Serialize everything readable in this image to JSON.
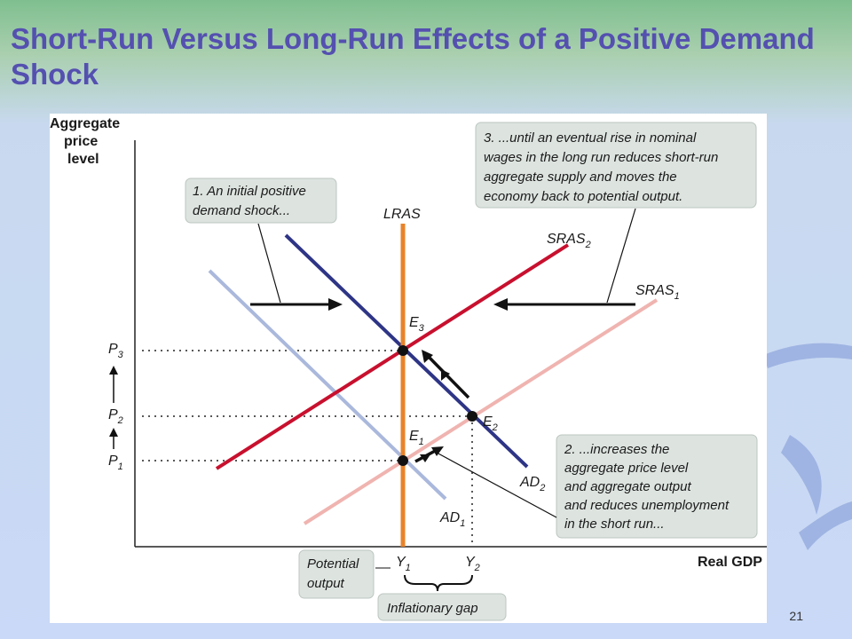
{
  "slide": {
    "title": "Short-Run Versus Long-Run Effects of a Positive Demand Shock",
    "number": "21"
  },
  "diagram": {
    "y_axis_label": [
      "Aggregate",
      "price",
      "level"
    ],
    "x_axis_label": "Real GDP",
    "curves": {
      "lras": "LRAS",
      "sras1": {
        "base": "SRAS",
        "sub": "1"
      },
      "sras2": {
        "base": "SRAS",
        "sub": "2"
      },
      "ad1": {
        "base": "AD",
        "sub": "1"
      },
      "ad2": {
        "base": "AD",
        "sub": "2"
      }
    },
    "points": {
      "e1": {
        "base": "E",
        "sub": "1"
      },
      "e2": {
        "base": "E",
        "sub": "2"
      },
      "e3": {
        "base": "E",
        "sub": "3"
      }
    },
    "price_levels": {
      "p1": {
        "base": "P",
        "sub": "1"
      },
      "p2": {
        "base": "P",
        "sub": "2"
      },
      "p3": {
        "base": "P",
        "sub": "3"
      }
    },
    "outputs": {
      "y1": {
        "base": "Y",
        "sub": "1"
      },
      "y2": {
        "base": "Y",
        "sub": "2"
      }
    },
    "annotations": {
      "note1": [
        "1. An initial positive",
        "demand shock..."
      ],
      "note2": [
        "2. ...increases the",
        "aggregate price level",
        "and aggregate output",
        "and reduces unemployment",
        "in the short run..."
      ],
      "note3": [
        "3. ...until an eventual rise in nominal",
        "wages in the long run reduces short-run",
        "aggregate supply and moves the",
        "economy back to potential output."
      ],
      "potential_output": [
        "Potential",
        "output"
      ],
      "inflationary_gap": "Inflationary gap"
    },
    "colors": {
      "lras": "#e8832a",
      "sras1": "#f0b4b0",
      "sras2": "#c8102e",
      "ad1": "#aab8dc",
      "ad2": "#2e3586",
      "callout_bg": "#dde4e0"
    }
  }
}
